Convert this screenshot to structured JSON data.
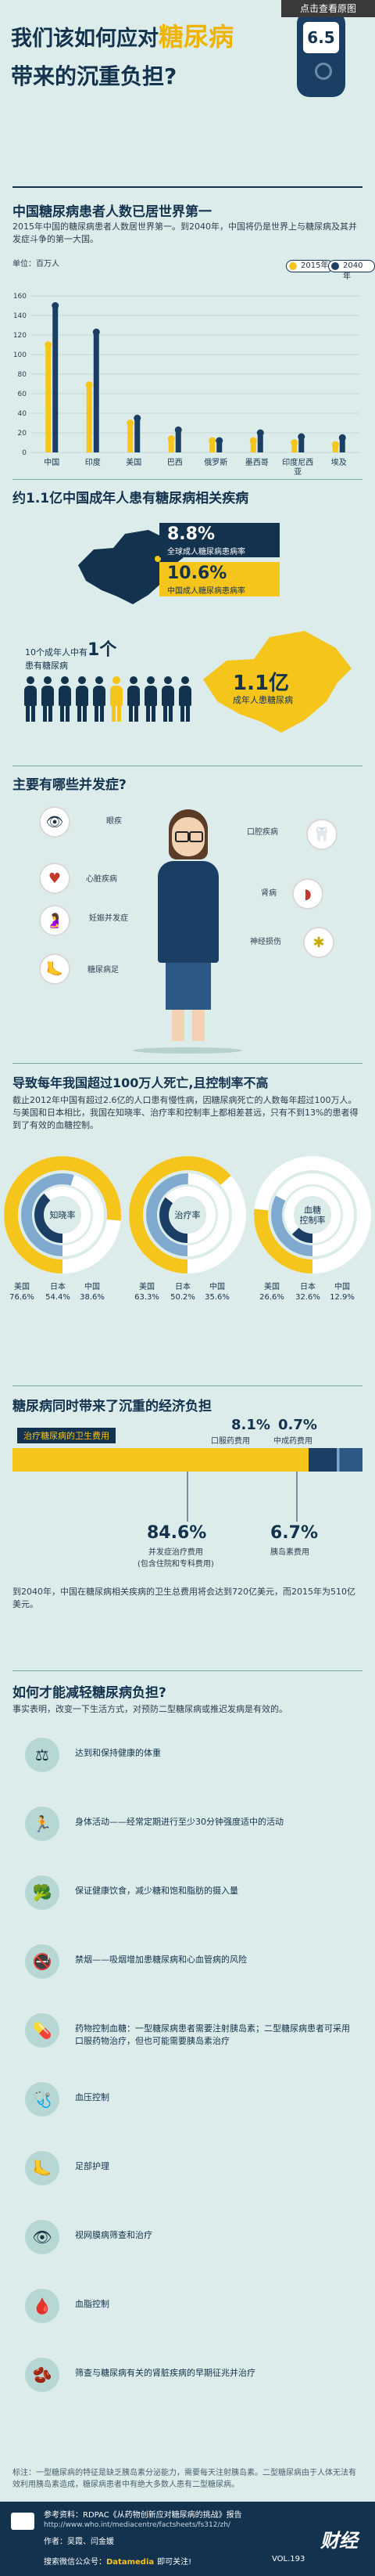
{
  "header": {
    "title_part1": "我们该如何应对",
    "title_highlight": "糖尿病",
    "title_line2": "带来的沉重负担?",
    "meter_value": "6.5",
    "view_original": "点击查看原图"
  },
  "section1": {
    "title": "中国糖尿病患者人数已居世界第一",
    "desc": "2015年中国的糖尿病患者人数居世界第一。到2040年，中国将仍是世界上与糖尿病及其并发症斗争的第一大国。",
    "unit": "单位：百万人",
    "legend_2015": "2015年",
    "legend_2040": "2040年"
  },
  "chart_data": {
    "type": "bar",
    "title": "中国糖尿病患者人数已居世界第一",
    "ylabel": "单位：百万人",
    "categories": [
      "中国",
      "印度",
      "美国",
      "巴西",
      "俄罗斯",
      "墨西哥",
      "印度尼西亚",
      "埃及"
    ],
    "yticks": [
      0,
      20,
      40,
      60,
      80,
      100,
      120,
      140,
      160
    ],
    "ylim": [
      0,
      160
    ],
    "series": [
      {
        "name": "2015年",
        "color": "#f6c51b",
        "values": [
          110,
          69,
          30,
          14,
          12,
          12,
          10,
          8
        ]
      },
      {
        "name": "2040年",
        "color": "#1b3f64",
        "values": [
          150,
          123,
          35,
          23,
          12,
          20,
          16,
          15
        ]
      }
    ]
  },
  "section2": {
    "title": "约1.1亿中国成年人患有糖尿病相关疾病",
    "stat1_pct": "8.8%",
    "stat1_label": "全球成人糖尿病患病率",
    "stat2_pct": "10.6%",
    "stat2_label": "中国成人糖尿病患病率",
    "people_text1": "10个成年人中有",
    "people_num": "1个",
    "people_text2": "患有糖尿病",
    "map_num": "1.1亿",
    "map_label": "成年人患糖尿病"
  },
  "section3": {
    "title": "主要有哪些并发症?",
    "items": [
      {
        "label": "眼疾",
        "icon": "eye-icon"
      },
      {
        "label": "口腔疾病",
        "icon": "tooth-icon"
      },
      {
        "label": "心脏疾病",
        "icon": "heart-icon"
      },
      {
        "label": "肾病",
        "icon": "kidney-icon"
      },
      {
        "label": "妊娠并发症",
        "icon": "pregnancy-icon"
      },
      {
        "label": "神经损伤",
        "icon": "nerve-icon"
      },
      {
        "label": "糖尿病足",
        "icon": "foot-icon"
      }
    ]
  },
  "section4": {
    "title": "导致每年我国超过100万人死亡,且控制率不高",
    "desc": "截止2012年中国有超过2.6亿的人口患有慢性病，因糖尿病死亡的人数每年超过100万人。与美国和日本相比，我国在知晓率、治疗率和控制率上都相差甚远，只有不到13%的患者得到了有效的血糖控制。",
    "donuts": [
      {
        "label": "知晓率",
        "us": "美国\n76.6%",
        "jp": "日本\n54.4%",
        "cn": "中国\n38.6%",
        "us_v": 76.6,
        "jp_v": 54.4,
        "cn_v": 38.6
      },
      {
        "label": "治疗率",
        "us": "美国\n63.3%",
        "jp": "日本\n50.2%",
        "cn": "中国\n35.6%",
        "us_v": 63.3,
        "jp_v": 50.2,
        "cn_v": 35.6
      },
      {
        "label": "血糖\n控制率",
        "us": "美国\n26.6%",
        "jp": "日本\n32.6%",
        "cn": "中国\n12.9%",
        "us_v": 26.6,
        "jp_v": 32.6,
        "cn_v": 12.9
      }
    ]
  },
  "section5": {
    "title": "糖尿病同时带来了沉重的经济负担",
    "bar_label": "治疗糖尿病的卫生费用",
    "p1": "8.1%",
    "p1_label": "口服药费用",
    "p2": "0.7%",
    "p2_label": "中成药费用",
    "p3": "84.6%",
    "p3_label": "并发症治疗费用\n(包含住院和专科费用)",
    "p4": "6.7%",
    "p4_label": "胰岛素费用",
    "desc": "到2040年，中国在糖尿病相关疾病的卫生总费用将会达到720亿美元，而2015年为510亿美元。"
  },
  "section6": {
    "title": "如何才能减轻糖尿病负担?",
    "desc": "事实表明，改变一下生活方式，对预防二型糖尿病或推迟发病是有效的。",
    "items": [
      {
        "icon": "scale-icon",
        "glyph": "⚖",
        "text": "达到和保持健康的体重"
      },
      {
        "icon": "runner-icon",
        "glyph": "🏃",
        "text": "身体活动——经常定期进行至少30分钟强度适中的活动"
      },
      {
        "icon": "broccoli-icon",
        "glyph": "🥦",
        "text": "保证健康饮食，减少糖和饱和脂肪的摄入量"
      },
      {
        "icon": "no-smoking-icon",
        "glyph": "🚭",
        "text": "禁烟——吸烟增加患糖尿病和心血管病的风险"
      },
      {
        "icon": "pill-icon",
        "glyph": "💊",
        "text": "药物控制血糖：一型糖尿病患者需要注射胰岛素；二型糖尿病患者可采用口服药物治疗，但也可能需要胰岛素治疗"
      },
      {
        "icon": "blood-pressure-icon",
        "glyph": "🩺",
        "text": "血压控制"
      },
      {
        "icon": "foot-care-icon",
        "glyph": "🦶",
        "text": "足部护理"
      },
      {
        "icon": "eye-check-icon",
        "glyph": "👁",
        "text": "视网膜病筛查和治疗"
      },
      {
        "icon": "blood-lipid-icon",
        "glyph": "🩸",
        "text": "血脂控制"
      },
      {
        "icon": "kidney-check-icon",
        "glyph": "🫘",
        "text": "筛查与糖尿病有关的肾脏疾病的早期征兆并治疗"
      }
    ],
    "note": "标注：一型糖尿病的特征是缺乏胰岛素分泌能力，需要每天注射胰岛素。二型糖尿病由于人体无法有效利用胰岛素造成，糖尿病患者中有绝大多数人患有二型糖尿病。"
  },
  "footer": {
    "ref_label": "参考资料：",
    "ref_text": "RDPAC《从药物创新应对糖尿病的挑战》报告",
    "ref_url": "http://www.who.int/mediacentre/factsheets/fs312/zh/",
    "author": "作者：吴霞、闫金媛",
    "wechat": "搜索微信公众号：",
    "wechat_name": "Datamedia",
    "follow": "即可关注!",
    "vol": "VOL.193",
    "logo": "财经"
  }
}
